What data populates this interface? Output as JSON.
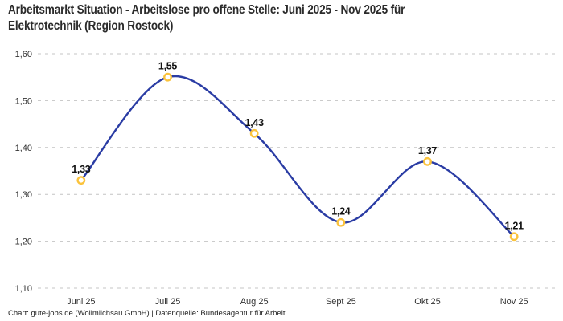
{
  "header": {
    "title_lines": [
      "Arbeitsmarkt Situation - Arbeitslose pro offene Stelle: Juni 2025 - Nov 2025 für",
      "Elektrotechnik (Region Rostock)"
    ]
  },
  "chart_data": {
    "type": "line",
    "title": "Arbeitsmarkt Situation - Arbeitslose pro offene Stelle: Juni 2025 - Nov 2025 für Elektrotechnik (Region Rostock)",
    "categories": [
      "Juni 25",
      "Juli 25",
      "Aug 25",
      "Sept 25",
      "Okt 25",
      "Nov 25"
    ],
    "values": [
      1.33,
      1.55,
      1.43,
      1.24,
      1.37,
      1.21
    ],
    "value_labels": [
      "1,33",
      "1,55",
      "1,43",
      "1,24",
      "1,37",
      "1,21"
    ],
    "ylim": [
      1.1,
      1.6
    ],
    "y_ticks": [
      1.1,
      1.2,
      1.3,
      1.4,
      1.5,
      1.6
    ],
    "y_tick_labels": [
      "1,10",
      "1,20",
      "1,30",
      "1,40",
      "1,50",
      "1,60"
    ],
    "xlabel": "",
    "ylabel": "",
    "legend": "none",
    "grid": "horizontal-dashed",
    "curve": "smooth",
    "colors": {
      "line": "#2a3ca4",
      "marker_stroke": "#fbc33c",
      "marker_fill": "#ffffff",
      "grid": "#c4c4c4",
      "tick_text": "#333333",
      "value_text": "#111111"
    }
  },
  "footer": {
    "credit": "Chart: gute-jobs.de (Wollmilchsau GmbH) | Datenquelle: Bundesagentur für Arbeit"
  }
}
